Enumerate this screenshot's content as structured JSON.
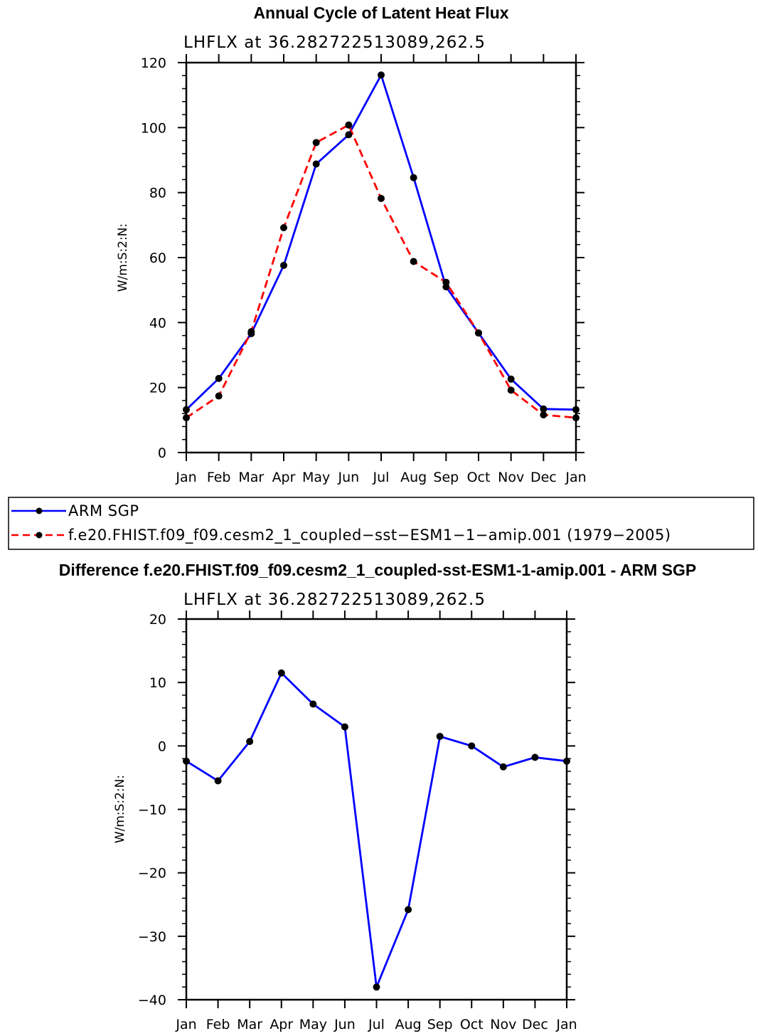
{
  "chart_data": [
    {
      "type": "line",
      "title": "Annual Cycle of Latent Heat Flux",
      "subtitle": "LHFLX at 36.282722513089,262.5",
      "ylabel": "W/m:S:2:N:",
      "xlabel": "",
      "categories": [
        "Jan",
        "Feb",
        "Mar",
        "Apr",
        "May",
        "Jun",
        "Jul",
        "Aug",
        "Sep",
        "Oct",
        "Nov",
        "Dec",
        "Jan"
      ],
      "ylim": [
        0,
        120
      ],
      "yticks": [
        0,
        20,
        40,
        60,
        80,
        100,
        120
      ],
      "series": [
        {
          "name": "ARM SGP",
          "color": "#0000ff",
          "dash": "solid",
          "values": [
            13.2,
            22.8,
            36.6,
            57.6,
            88.8,
            97.8,
            116.2,
            84.6,
            51.0,
            36.8,
            22.6,
            13.4,
            13.2
          ]
        },
        {
          "name": "f.e20.FHIST.f09_f09.cesm2_1_coupled-sst-ESM1-1-amip.001 (1979-2005)",
          "color": "#ff0000",
          "dash": "dashed",
          "values": [
            10.7,
            17.4,
            37.2,
            69.2,
            95.4,
            100.8,
            78.2,
            58.8,
            52.4,
            36.8,
            19.2,
            11.6,
            10.7
          ]
        }
      ],
      "legend": {
        "entries": [
          "ARM SGP",
          "f.e20.FHIST.f09_f09.cesm2_1_coupled−sst−ESM1−1−amip.001 (1979−2005)"
        ],
        "position": "below"
      }
    },
    {
      "type": "line",
      "title": "Difference f.e20.FHIST.f09_f09.cesm2_1_coupled-sst-ESM1-1-amip.001 - ARM SGP",
      "subtitle": "LHFLX at 36.282722513089,262.5",
      "ylabel": "W/m:S:2:N:",
      "xlabel": "",
      "categories": [
        "Jan",
        "Feb",
        "Mar",
        "Apr",
        "May",
        "Jun",
        "Jul",
        "Aug",
        "Sep",
        "Oct",
        "Nov",
        "Dec",
        "Jan"
      ],
      "ylim": [
        -40,
        20
      ],
      "yticks": [
        -40,
        -30,
        -20,
        -10,
        0,
        10,
        20
      ],
      "series": [
        {
          "name": "Difference",
          "color": "#0000ff",
          "dash": "solid",
          "values": [
            -2.4,
            -5.5,
            0.7,
            11.5,
            6.6,
            3.0,
            -38.0,
            -25.8,
            1.5,
            0.0,
            -3.3,
            -1.8,
            -2.4
          ]
        }
      ]
    }
  ]
}
